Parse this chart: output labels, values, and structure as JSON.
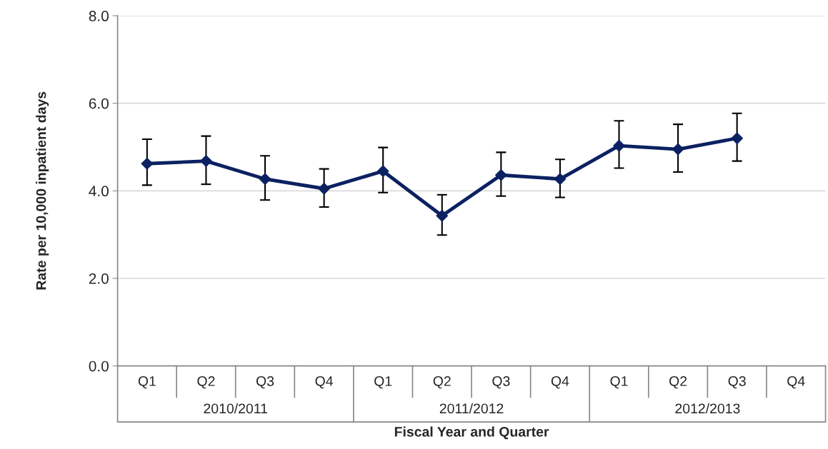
{
  "chart_data": {
    "type": "line",
    "xlabel": "Fiscal Year and Quarter",
    "ylabel": "Rate per 10,000 inpatient days",
    "categories": [
      "Q1",
      "Q2",
      "Q3",
      "Q4",
      "Q1",
      "Q2",
      "Q3",
      "Q4",
      "Q1",
      "Q2",
      "Q3",
      "Q4"
    ],
    "series": [
      {
        "color": "#0b2161",
        "values": [
          4.62,
          4.68,
          4.27,
          4.05,
          4.45,
          3.43,
          4.36,
          4.27,
          5.03,
          4.95,
          5.2,
          null
        ],
        "errors": [
          [
            4.13,
            5.18
          ],
          [
            4.15,
            5.25
          ],
          [
            3.79,
            4.8
          ],
          [
            3.63,
            4.5
          ],
          [
            3.96,
            4.99
          ],
          [
            2.99,
            3.91
          ],
          [
            3.88,
            4.88
          ],
          [
            3.85,
            4.72
          ],
          [
            4.52,
            5.6
          ],
          [
            4.43,
            5.52
          ],
          [
            4.68,
            5.77
          ],
          null
        ]
      }
    ],
    "annotations": [
      "2010/2011",
      "2011/2012",
      "2012/2013"
    ],
    "ylim": [
      0,
      8
    ],
    "yticks": [
      {
        "value": 0,
        "label": "0.0"
      },
      {
        "value": 2,
        "label": "2.0"
      },
      {
        "value": 4,
        "label": "4.0"
      },
      {
        "value": 6,
        "label": "6.0"
      },
      {
        "value": 8,
        "label": "8.0"
      }
    ],
    "grid": "y",
    "marker": "diamond",
    "line_style": "solid",
    "legend": false
  }
}
